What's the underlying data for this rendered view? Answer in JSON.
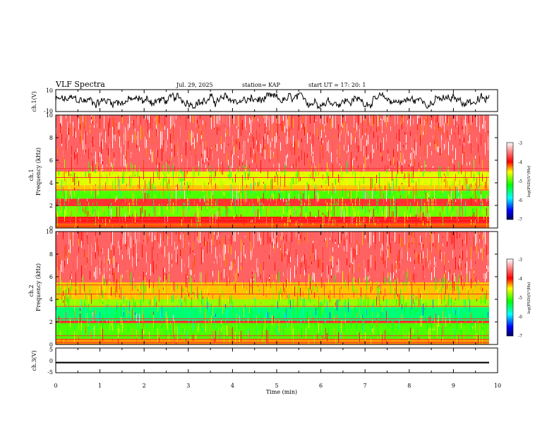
{
  "header": {
    "title": "VLF Spectra",
    "date": "Jul. 29, 2025",
    "station": "station= KAP",
    "start": "start UT =   17: 20: 1"
  },
  "chart_data": [
    {
      "type": "line",
      "name": "ch1-waveform",
      "ylabel": "ch.1(V)",
      "ylim": [
        -10,
        10
      ],
      "yticks": [
        "10",
        "-10"
      ],
      "xlim": [
        0,
        9.8
      ],
      "series": [
        {
          "name": "ch.1",
          "description_range": [
            -7,
            7
          ]
        }
      ]
    },
    {
      "type": "heatmap",
      "name": "ch1-spectrogram",
      "ylabel": "ch.1",
      "ylabel2": "Frequency (kHz)",
      "ylim": [
        0,
        10
      ],
      "yticks": [
        "0",
        "2",
        "4",
        "6",
        "8",
        "10"
      ],
      "xlim": [
        0,
        9.8
      ],
      "colorbar": {
        "label": "log(PSD)(V²/Hz)",
        "ticks": [
          "-3",
          "-4",
          "-5",
          "-6",
          "-7"
        ],
        "range": [
          -7,
          -3
        ]
      },
      "bands": [
        {
          "f": [
            0.0,
            0.4
          ],
          "level": -4.2
        },
        {
          "f": [
            0.4,
            1.0
          ],
          "level": -3.9
        },
        {
          "f": [
            1.0,
            2.0
          ],
          "level": -4.9
        },
        {
          "f": [
            2.0,
            2.6
          ],
          "level": -3.8
        },
        {
          "f": [
            2.6,
            3.3
          ],
          "level": -5.0
        },
        {
          "f": [
            3.3,
            3.8
          ],
          "level": -4.4
        },
        {
          "f": [
            3.8,
            5.0
          ],
          "level": -4.6
        },
        {
          "f": [
            5.0,
            10.0
          ],
          "level": -3.6
        }
      ]
    },
    {
      "type": "heatmap",
      "name": "ch2-spectrogram",
      "ylabel": "ch.2",
      "ylabel2": "Frequency (kHz)",
      "ylim": [
        0,
        10
      ],
      "yticks": [
        "0",
        "2",
        "4",
        "6",
        "8",
        "10"
      ],
      "xlim": [
        0,
        9.8
      ],
      "colorbar": {
        "label": "log(PSD)(V²/Hz)",
        "ticks": [
          "-3",
          "-4",
          "-5",
          "-6",
          "-7"
        ],
        "range": [
          -7,
          -3
        ]
      },
      "bands": [
        {
          "f": [
            0.0,
            0.5
          ],
          "level": -4.3
        },
        {
          "f": [
            0.5,
            1.9
          ],
          "level": -5.0
        },
        {
          "f": [
            1.9,
            2.1
          ],
          "level": -3.9
        },
        {
          "f": [
            2.1,
            3.3
          ],
          "level": -5.5
        },
        {
          "f": [
            3.3,
            4.0
          ],
          "level": -4.8
        },
        {
          "f": [
            4.0,
            5.5
          ],
          "level": -4.4
        },
        {
          "f": [
            5.5,
            10.0
          ],
          "level": -3.6
        }
      ]
    },
    {
      "type": "line",
      "name": "ch3-waveform",
      "ylabel": "ch.3(V)",
      "ylim": [
        -5,
        5
      ],
      "yticks": [
        "5",
        "0",
        "-5"
      ],
      "xlim": [
        0,
        9.8
      ],
      "series": [
        {
          "name": "ch.3",
          "description_range": [
            -1.2,
            -0.6
          ]
        }
      ],
      "xlabel": "Time (min)",
      "xticks": [
        "0",
        "1",
        "2",
        "3",
        "4",
        "5",
        "6",
        "7",
        "8",
        "9",
        "10"
      ],
      "xrange": [
        0,
        10
      ]
    }
  ]
}
